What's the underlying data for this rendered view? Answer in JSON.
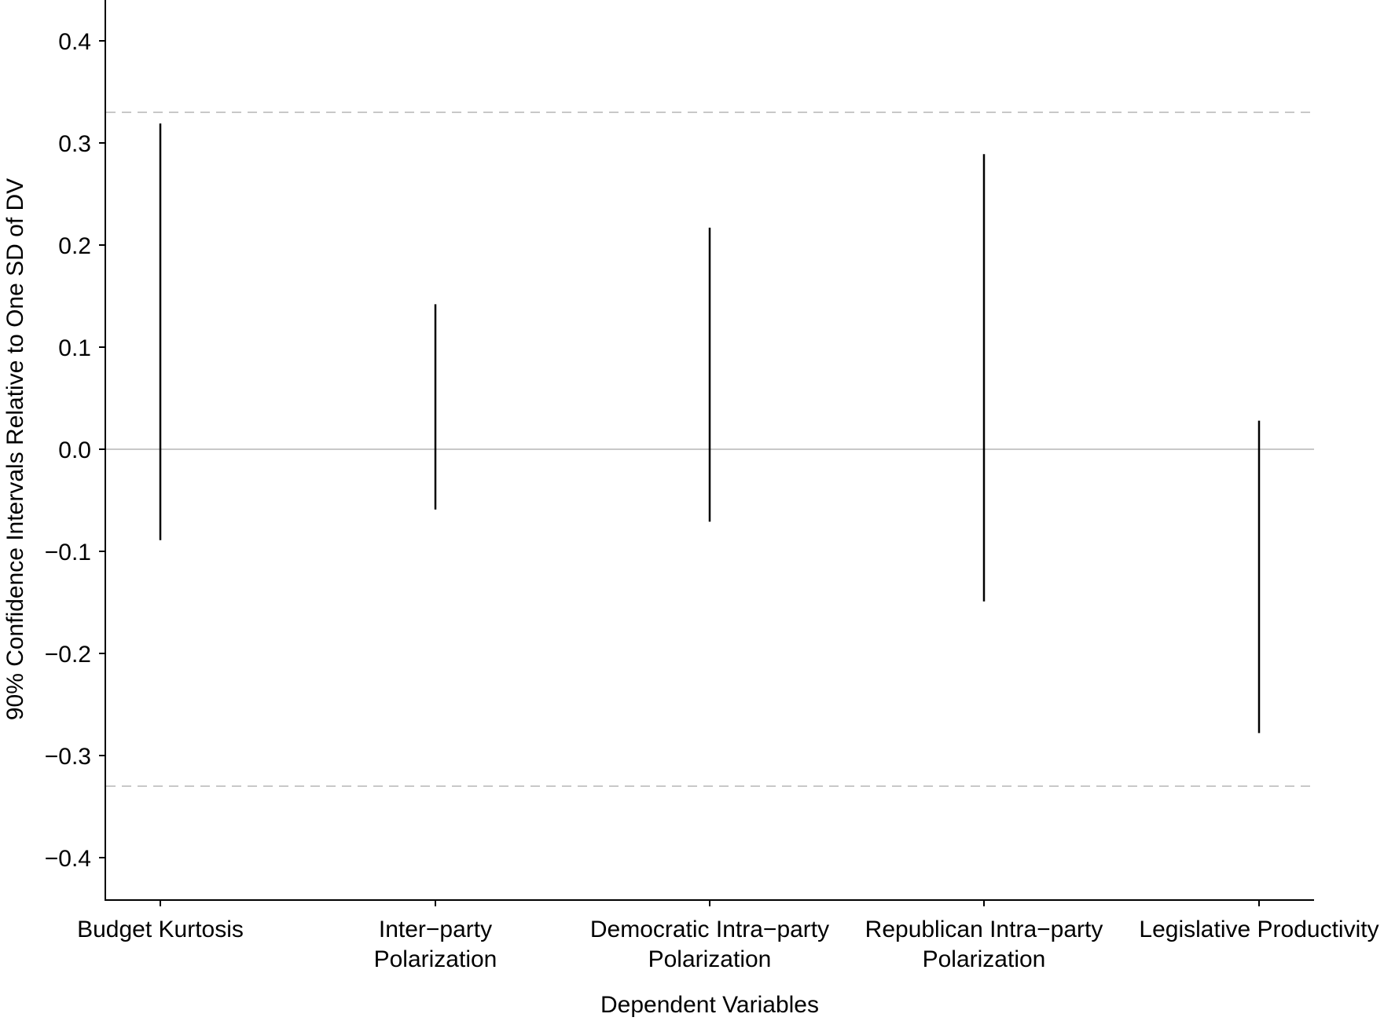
{
  "chart_data": {
    "type": "errorbar",
    "title": "",
    "xlabel": "Dependent Variables",
    "ylabel": "90% Confidence Intervals Relative to One SD of DV",
    "ylim": [
      -0.44,
      0.44
    ],
    "yticks": [
      0.4,
      0.3,
      0.2,
      0.1,
      0.0,
      -0.1,
      -0.2,
      -0.3,
      -0.4
    ],
    "ytick_labels": [
      "0.4",
      "0.3",
      "0.2",
      "0.1",
      "0.0",
      "−0.1",
      "−0.2",
      "−0.3",
      "−0.4"
    ],
    "categories": [
      "Budget Kurtosis",
      "Inter−party Polarization",
      "Democratic Intra−party Polarization",
      "Republican Intra−party Polarization",
      "Legislative Productivity"
    ],
    "category_label_lines": [
      [
        "Budget Kurtosis"
      ],
      [
        "Inter−party",
        "Polarization"
      ],
      [
        "Democratic Intra−party",
        "Polarization"
      ],
      [
        "Republican Intra−party",
        "Polarization"
      ],
      [
        "Legislative Productivity"
      ]
    ],
    "intervals": [
      {
        "name": "Budget Kurtosis",
        "low": -0.089,
        "high": 0.319
      },
      {
        "name": "Inter−party Polarization",
        "low": -0.059,
        "high": 0.142
      },
      {
        "name": "Democratic Intra−party Polarization",
        "low": -0.071,
        "high": 0.217
      },
      {
        "name": "Republican Intra−party Polarization",
        "low": -0.149,
        "high": 0.289
      },
      {
        "name": "Legislative Productivity",
        "low": -0.278,
        "high": 0.028
      }
    ],
    "reference_lines": [
      {
        "value": 0.0,
        "style": "solid",
        "color": "#c8c8c8"
      },
      {
        "value": 0.33,
        "style": "dashed",
        "color": "#c8c8c8"
      },
      {
        "value": -0.33,
        "style": "dashed",
        "color": "#c8c8c8"
      }
    ],
    "grid": false,
    "legend": null
  }
}
